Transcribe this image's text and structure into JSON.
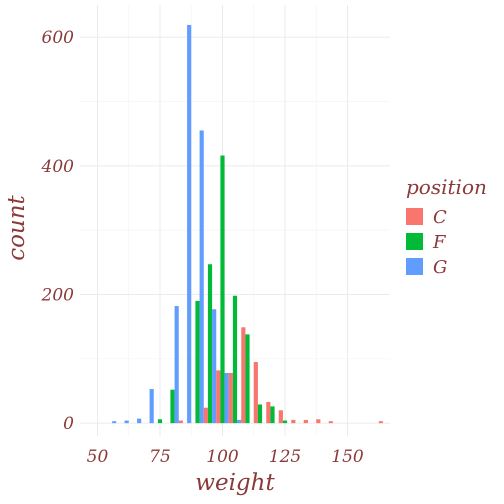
{
  "chart_data": {
    "type": "bar",
    "xlabel": "weight",
    "ylabel": "count",
    "xlim": [
      43,
      167
    ],
    "ylim": [
      -20,
      650
    ],
    "x_ticks": [
      "50",
      "75",
      "100",
      "125",
      "150"
    ],
    "x_tick_values": [
      50,
      75,
      100,
      125,
      150
    ],
    "y_ticks": [
      "0",
      "200",
      "400",
      "600"
    ],
    "y_tick_values": [
      0,
      200,
      400,
      600
    ],
    "grid": true,
    "legend": {
      "title": "position",
      "placement": "right"
    },
    "bins": [
      55,
      60,
      65,
      70,
      75,
      80,
      85,
      90,
      95,
      100,
      105,
      110,
      115,
      120,
      125,
      130,
      135,
      140,
      145,
      150,
      155,
      160,
      165
    ],
    "series": [
      {
        "name": "C",
        "color": "#f8766d",
        "values": [
          0,
          0,
          0,
          0,
          0,
          0,
          4,
          0,
          24,
          82,
          78,
          149,
          95,
          33,
          20,
          5,
          5,
          6,
          3,
          0,
          0,
          0,
          3
        ]
      },
      {
        "name": "F",
        "color": "#00ba38",
        "values": [
          0,
          0,
          0,
          0,
          6,
          52,
          0,
          190,
          247,
          416,
          198,
          138,
          29,
          26,
          4,
          0,
          0,
          0,
          0,
          0,
          0,
          0,
          0
        ]
      },
      {
        "name": "G",
        "color": "#619cff",
        "values": [
          3,
          4,
          7,
          53,
          0,
          182,
          619,
          455,
          177,
          78,
          5,
          0,
          0,
          0,
          0,
          0,
          0,
          0,
          0,
          0,
          0,
          0,
          0
        ]
      }
    ]
  }
}
